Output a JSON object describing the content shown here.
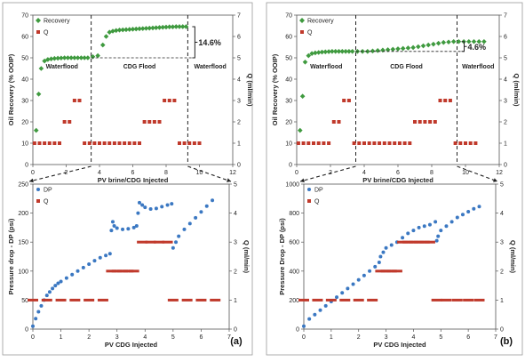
{
  "panels": [
    {
      "panel_label": "(a)",
      "top": {
        "xlabel": "PV brine/CDG Injected",
        "ylabel_left": "Oil Recovery (% OOIP)",
        "ylabel_right": "Q (ml/min)",
        "xlim": [
          0,
          12
        ],
        "xticks": [
          0,
          2,
          4,
          6,
          8,
          10,
          12
        ],
        "ylim_left": [
          0,
          70
        ],
        "yticks_left": [
          0,
          10,
          20,
          30,
          40,
          50,
          60,
          70
        ],
        "ylim_right": [
          0,
          7
        ],
        "yticks_right": [
          0,
          1,
          2,
          3,
          4,
          5,
          6,
          7
        ],
        "legend": [
          "Recovery",
          "Q"
        ],
        "phase_labels": [
          "Waterflood",
          "CDG Flood",
          "Waterflood"
        ],
        "annotation": "14.6%",
        "dividers_x": [
          3.5,
          9.3
        ]
      },
      "bottom": {
        "xlabel": "PV CDG Injected",
        "ylabel_left": "Pressure drop - DP (psi)",
        "ylabel_right": "Q (ml/min)",
        "xlim": [
          0,
          7
        ],
        "xticks": [
          0,
          1,
          2,
          3,
          4,
          5,
          6,
          7
        ],
        "ylim_left": [
          0,
          250
        ],
        "yticks_left": [
          0,
          50,
          100,
          150,
          200,
          250
        ],
        "ylim_right": [
          0,
          5
        ],
        "yticks_right": [
          0,
          1,
          2,
          3,
          4,
          5
        ],
        "legend": [
          "DP",
          "Q"
        ]
      }
    },
    {
      "panel_label": "(b)",
      "top": {
        "xlabel": "PV brine/CDG Injected",
        "ylabel_left": "Oil Recovery (% OOIP)",
        "ylabel_right": "Q (ml/min)",
        "xlim": [
          0,
          12
        ],
        "xticks": [
          0,
          2,
          4,
          6,
          8,
          10,
          12
        ],
        "ylim_left": [
          0,
          70
        ],
        "yticks_left": [
          0,
          10,
          20,
          30,
          40,
          50,
          60,
          70
        ],
        "ylim_right": [
          0,
          7
        ],
        "yticks_right": [
          0,
          1,
          2,
          3,
          4,
          5,
          6,
          7
        ],
        "legend": [
          "Recovery",
          "Q"
        ],
        "phase_labels": [
          "Waterflood",
          "CDG Flood",
          "Waterflood"
        ],
        "annotation": "4.6%",
        "dividers_x": [
          3.5,
          9.5
        ]
      },
      "bottom": {
        "xlabel": "PV CDG Injected",
        "ylabel_left": "Pressure Drop - DP (psi)",
        "ylabel_right": "Q (ml/min)",
        "xlim": [
          0,
          7
        ],
        "xticks": [
          0,
          1,
          2,
          3,
          4,
          5,
          6,
          7
        ],
        "ylim_left": [
          0,
          1000
        ],
        "yticks_left": [
          0,
          200,
          400,
          600,
          800,
          1000
        ],
        "ylim_right": [
          0,
          5
        ],
        "yticks_right": [
          0,
          1,
          2,
          3,
          4,
          5
        ],
        "legend": [
          "DP",
          "Q"
        ]
      }
    }
  ],
  "chart_data": [
    {
      "type": "scatter",
      "panel": "(a) top",
      "series": [
        {
          "name": "Recovery",
          "axis": "left",
          "x": [
            0.2,
            0.35,
            0.5,
            0.7,
            0.9,
            1.1,
            1.3,
            1.5,
            1.7,
            1.9,
            2.1,
            2.3,
            2.5,
            2.7,
            2.9,
            3.1,
            3.3,
            3.6,
            3.9,
            4.2,
            4.4,
            4.6,
            4.8,
            5.0,
            5.2,
            5.4,
            5.6,
            5.8,
            6.0,
            6.2,
            6.4,
            6.6,
            6.8,
            7.0,
            7.2,
            7.4,
            7.6,
            7.8,
            8.0,
            8.2,
            8.4,
            8.6,
            8.8,
            9.0,
            9.2
          ],
          "y": [
            16,
            33,
            45,
            48.5,
            49.2,
            49.5,
            49.7,
            49.8,
            49.9,
            50,
            50,
            50,
            50,
            50,
            50,
            50,
            50,
            50.5,
            51,
            56,
            60,
            62,
            62.5,
            62.8,
            63,
            63.1,
            63.2,
            63.3,
            63.4,
            63.5,
            63.6,
            63.7,
            63.8,
            63.9,
            64,
            64.1,
            64.2,
            64.3,
            64.4,
            64.5,
            64.5,
            64.6,
            64.6,
            64.6,
            64.6
          ]
        },
        {
          "name": "Q",
          "axis": "right",
          "x": [
            0.1,
            0.4,
            0.7,
            1.0,
            1.3,
            1.6,
            1.9,
            2.2,
            2.5,
            2.8,
            3.1,
            3.4,
            3.7,
            4.0,
            4.3,
            4.6,
            4.9,
            5.2,
            5.5,
            5.8,
            6.1,
            6.4,
            6.7,
            7.0,
            7.3,
            7.6,
            7.9,
            8.2,
            8.5,
            8.8,
            9.1,
            9.4,
            9.7,
            10.0
          ],
          "y": [
            1,
            1,
            1,
            1,
            1,
            1,
            2,
            2,
            3,
            3,
            1,
            1,
            1,
            1,
            1,
            1,
            1,
            1,
            1,
            1,
            1,
            1,
            2,
            2,
            2,
            2,
            3,
            3,
            3,
            1,
            1,
            1,
            1,
            1
          ]
        }
      ]
    },
    {
      "type": "scatter",
      "panel": "(a) bottom",
      "series": [
        {
          "name": "DP",
          "axis": "left",
          "x": [
            0,
            0.1,
            0.2,
            0.3,
            0.4,
            0.5,
            0.6,
            0.7,
            0.8,
            0.9,
            1.0,
            1.2,
            1.4,
            1.6,
            1.8,
            2.0,
            2.2,
            2.4,
            2.6,
            2.75,
            2.8,
            2.85,
            2.9,
            3.0,
            3.2,
            3.4,
            3.6,
            3.7,
            3.75,
            3.8,
            3.9,
            4.0,
            4.2,
            4.4,
            4.6,
            4.8,
            4.95,
            5.0,
            5.1,
            5.2,
            5.4,
            5.6,
            5.8,
            6.0,
            6.2,
            6.4
          ],
          "y": [
            5,
            18,
            30,
            40,
            50,
            58,
            64,
            70,
            75,
            79,
            82,
            88,
            94,
            100,
            106,
            112,
            118,
            123,
            127,
            130,
            170,
            185,
            178,
            174,
            172,
            173,
            175,
            178,
            200,
            218,
            214,
            210,
            207,
            208,
            211,
            214,
            216,
            140,
            150,
            160,
            172,
            182,
            192,
            202,
            212,
            222
          ]
        },
        {
          "name": "Q",
          "axis": "right",
          "x": [
            0,
            0.5,
            1.0,
            1.5,
            2.0,
            2.5,
            2.8,
            3.0,
            3.2,
            3.4,
            3.6,
            3.9,
            4.2,
            4.5,
            4.8,
            5.0,
            5.5,
            6.0,
            6.5
          ],
          "y": [
            1,
            1,
            1,
            1,
            1,
            1,
            2,
            2,
            2,
            2,
            2,
            3,
            3,
            3,
            3,
            1,
            1,
            1,
            1
          ]
        }
      ]
    },
    {
      "type": "scatter",
      "panel": "(b) top",
      "series": [
        {
          "name": "Recovery",
          "axis": "left",
          "x": [
            0.2,
            0.35,
            0.5,
            0.7,
            0.9,
            1.1,
            1.3,
            1.5,
            1.7,
            1.9,
            2.1,
            2.3,
            2.5,
            2.7,
            2.9,
            3.1,
            3.3,
            3.6,
            3.9,
            4.2,
            4.5,
            4.8,
            5.1,
            5.4,
            5.7,
            6.0,
            6.3,
            6.6,
            6.9,
            7.2,
            7.5,
            7.8,
            8.1,
            8.4,
            8.7,
            9.0,
            9.3,
            9.6,
            9.9,
            10.2,
            10.5,
            10.8,
            11.1
          ],
          "y": [
            16,
            32,
            48,
            51,
            52,
            52.3,
            52.5,
            52.7,
            52.8,
            52.9,
            53,
            53,
            53,
            53,
            53,
            53,
            53,
            53,
            53,
            53,
            53.2,
            53.4,
            53.6,
            53.8,
            54,
            54.2,
            54.4,
            54.6,
            54.8,
            55.2,
            55.6,
            56,
            56.4,
            56.8,
            57.2,
            57.4,
            57.6,
            57.6,
            57.6,
            57.6,
            57.6,
            57.6,
            57.6
          ]
        },
        {
          "name": "Q",
          "axis": "right",
          "x": [
            0.1,
            0.4,
            0.7,
            1.0,
            1.3,
            1.6,
            1.9,
            2.2,
            2.5,
            2.8,
            3.1,
            3.4,
            3.7,
            4.0,
            4.3,
            4.6,
            4.9,
            5.2,
            5.5,
            5.8,
            6.1,
            6.4,
            6.7,
            7.0,
            7.3,
            7.6,
            7.9,
            8.2,
            8.5,
            8.8,
            9.1,
            9.4,
            9.7,
            10.0,
            10.3,
            10.6
          ],
          "y": [
            1,
            1,
            1,
            1,
            1,
            1,
            1,
            2,
            2,
            3,
            3,
            1,
            1,
            1,
            1,
            1,
            1,
            1,
            1,
            1,
            1,
            1,
            1,
            2,
            2,
            2,
            2,
            2,
            3,
            3,
            3,
            1,
            1,
            1,
            1,
            1
          ]
        }
      ]
    },
    {
      "type": "scatter",
      "panel": "(b) bottom",
      "series": [
        {
          "name": "DP",
          "axis": "left",
          "x": [
            0,
            0.2,
            0.4,
            0.6,
            0.8,
            1.0,
            1.2,
            1.4,
            1.6,
            1.8,
            2.0,
            2.2,
            2.4,
            2.6,
            2.75,
            2.8,
            2.9,
            3.0,
            3.2,
            3.4,
            3.6,
            3.8,
            4.0,
            4.2,
            4.4,
            4.6,
            4.8,
            4.85,
            4.9,
            5.0,
            5.2,
            5.4,
            5.6,
            5.8,
            6.0,
            6.2,
            6.4
          ],
          "y": [
            20,
            70,
            100,
            130,
            160,
            190,
            220,
            250,
            280,
            310,
            340,
            370,
            400,
            430,
            460,
            500,
            530,
            560,
            580,
            600,
            630,
            660,
            680,
            700,
            710,
            720,
            740,
            610,
            640,
            680,
            710,
            740,
            770,
            790,
            810,
            830,
            845
          ]
        },
        {
          "name": "Q",
          "axis": "right",
          "x": [
            0,
            0.5,
            1.0,
            1.5,
            2.0,
            2.5,
            2.8,
            3.0,
            3.2,
            3.4,
            3.6,
            3.8,
            4.0,
            4.2,
            4.4,
            4.6,
            4.85,
            5.2,
            5.6,
            6.0,
            6.4
          ],
          "y": [
            1,
            1,
            1,
            1,
            1,
            1,
            2,
            2,
            2,
            2,
            3,
            3,
            3,
            3,
            3,
            3,
            1,
            1,
            1,
            1,
            1
          ]
        }
      ]
    }
  ]
}
